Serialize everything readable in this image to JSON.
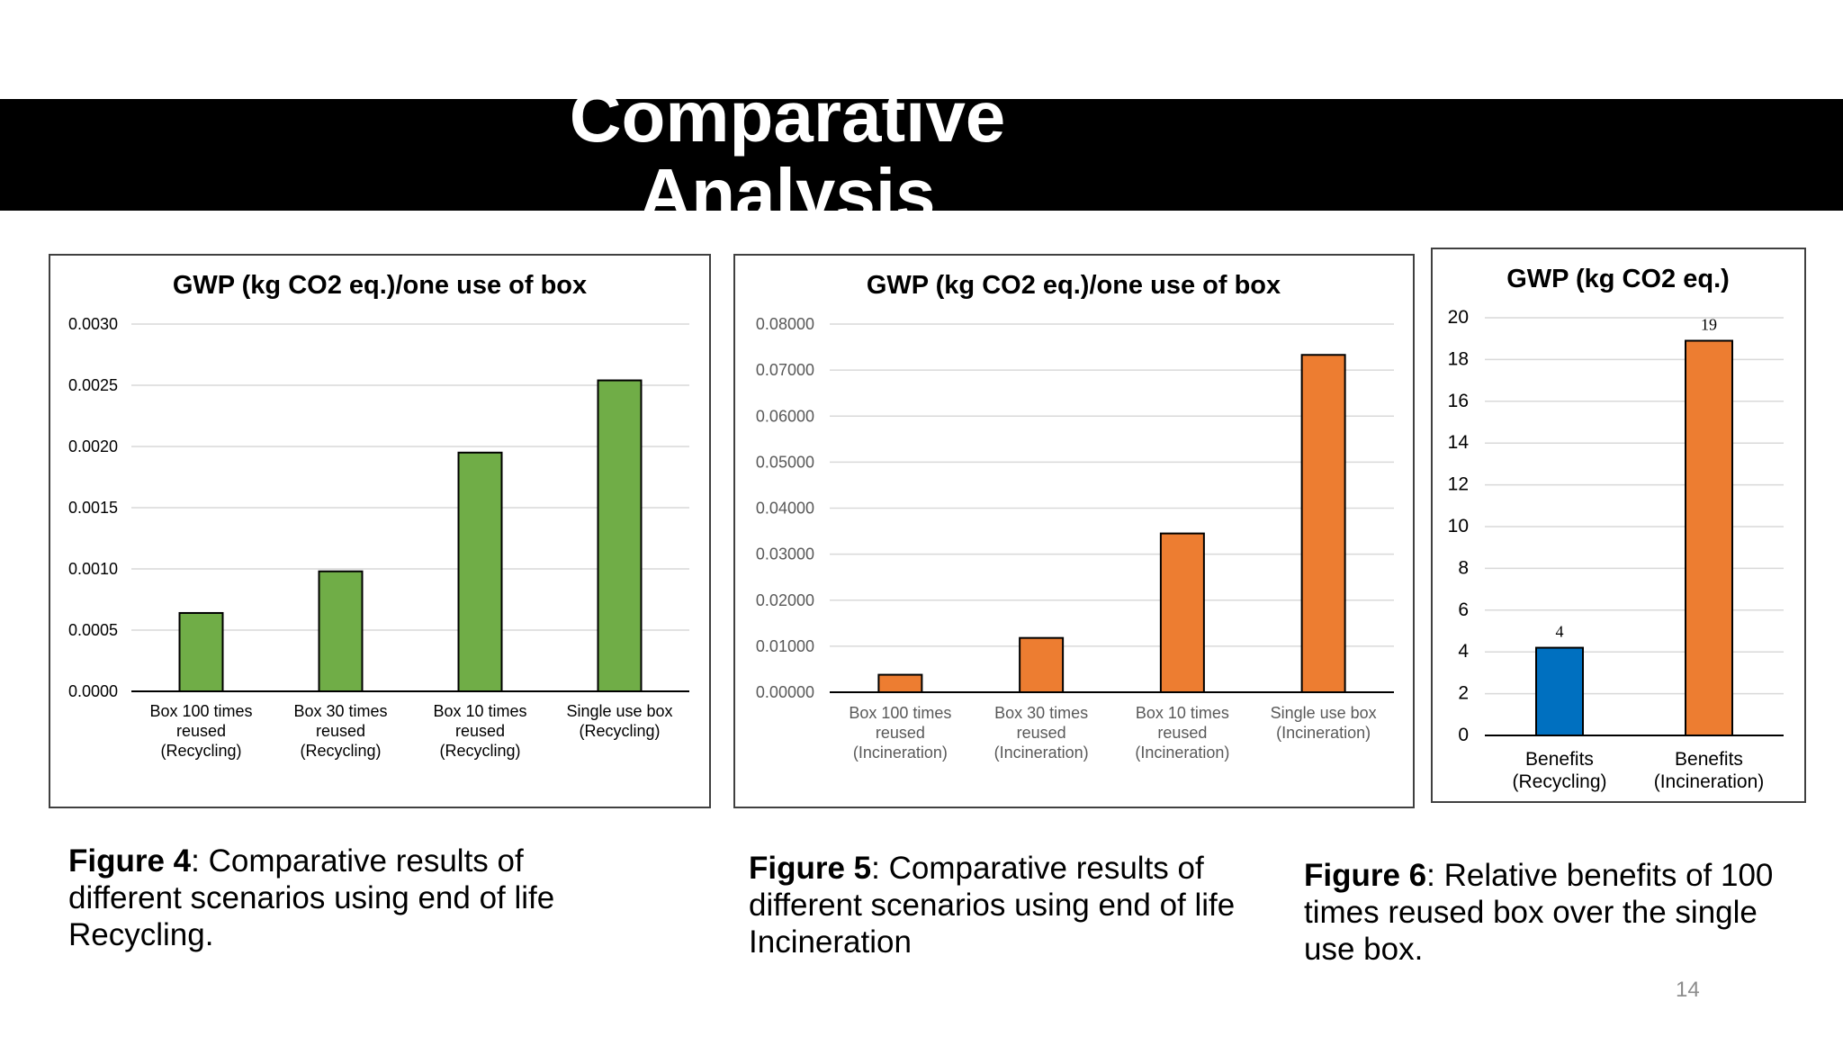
{
  "slide": {
    "title_line1": "Comparative",
    "title_line2": "Analysis",
    "page_number": "14"
  },
  "captions": [
    {
      "bold": "Figure 4",
      "text": ": Comparative results of different  scenarios using end of life Recycling."
    },
    {
      "bold": "Figure 5",
      "text": ": Comparative results of different scenarios using end of life Incineration"
    },
    {
      "bold": "Figure 6",
      "text": ": Relative benefits of 100 times reused box over the single use box."
    }
  ],
  "chart_data": [
    {
      "type": "bar",
      "title": "GWP (kg CO2 eq.)/one use of box",
      "categories": [
        [
          "Box 100 times",
          "reused",
          "(Recycling)"
        ],
        [
          "Box  30 times",
          "reused",
          "(Recycling)"
        ],
        [
          "Box 10 times",
          "reused",
          "(Recycling)"
        ],
        [
          "Single use box",
          "(Recycling)"
        ]
      ],
      "values": [
        0.00064,
        0.00098,
        0.00195,
        0.00254
      ],
      "ylim": [
        0,
        0.003
      ],
      "yticks": [
        "0.0000",
        "0.0005",
        "0.0010",
        "0.0015",
        "0.0020",
        "0.0025",
        "0.0030"
      ],
      "colors": [
        "#70AD47",
        "#70AD47",
        "#70AD47",
        "#70AD47"
      ],
      "grid": true,
      "xlabel": "",
      "ylabel": ""
    },
    {
      "type": "bar",
      "title": "GWP (kg CO2 eq.)/one use of box",
      "categories": [
        [
          "Box 100 times",
          "reused",
          "(Incineration)"
        ],
        [
          "Box 30 times",
          "reused",
          "(Incineration)"
        ],
        [
          "Box 10 times",
          "reused",
          "(Incineration)"
        ],
        [
          "Single use box",
          "(Incineration)"
        ]
      ],
      "values": [
        0.0038,
        0.0118,
        0.0345,
        0.0733
      ],
      "ylim": [
        0,
        0.08
      ],
      "yticks": [
        "0.00000",
        "0.01000",
        "0.02000",
        "0.03000",
        "0.04000",
        "0.05000",
        "0.06000",
        "0.07000",
        "0.08000"
      ],
      "colors": [
        "#ED7D31",
        "#ED7D31",
        "#ED7D31",
        "#ED7D31"
      ],
      "grid": true,
      "xlabel": "",
      "ylabel": ""
    },
    {
      "type": "bar",
      "title": "GWP (kg CO2 eq.)",
      "categories": [
        [
          "Benefits",
          "(Recycling)"
        ],
        [
          "Benefits",
          "(Incineration)"
        ]
      ],
      "values": [
        4.2,
        18.9
      ],
      "data_labels": [
        "4",
        "19"
      ],
      "ylim": [
        0,
        20
      ],
      "yticks": [
        "0",
        "2",
        "4",
        "6",
        "8",
        "10",
        "12",
        "14",
        "16",
        "18",
        "20"
      ],
      "colors": [
        "#0070C0",
        "#ED7D31"
      ],
      "grid": true,
      "xlabel": "",
      "ylabel": ""
    }
  ]
}
